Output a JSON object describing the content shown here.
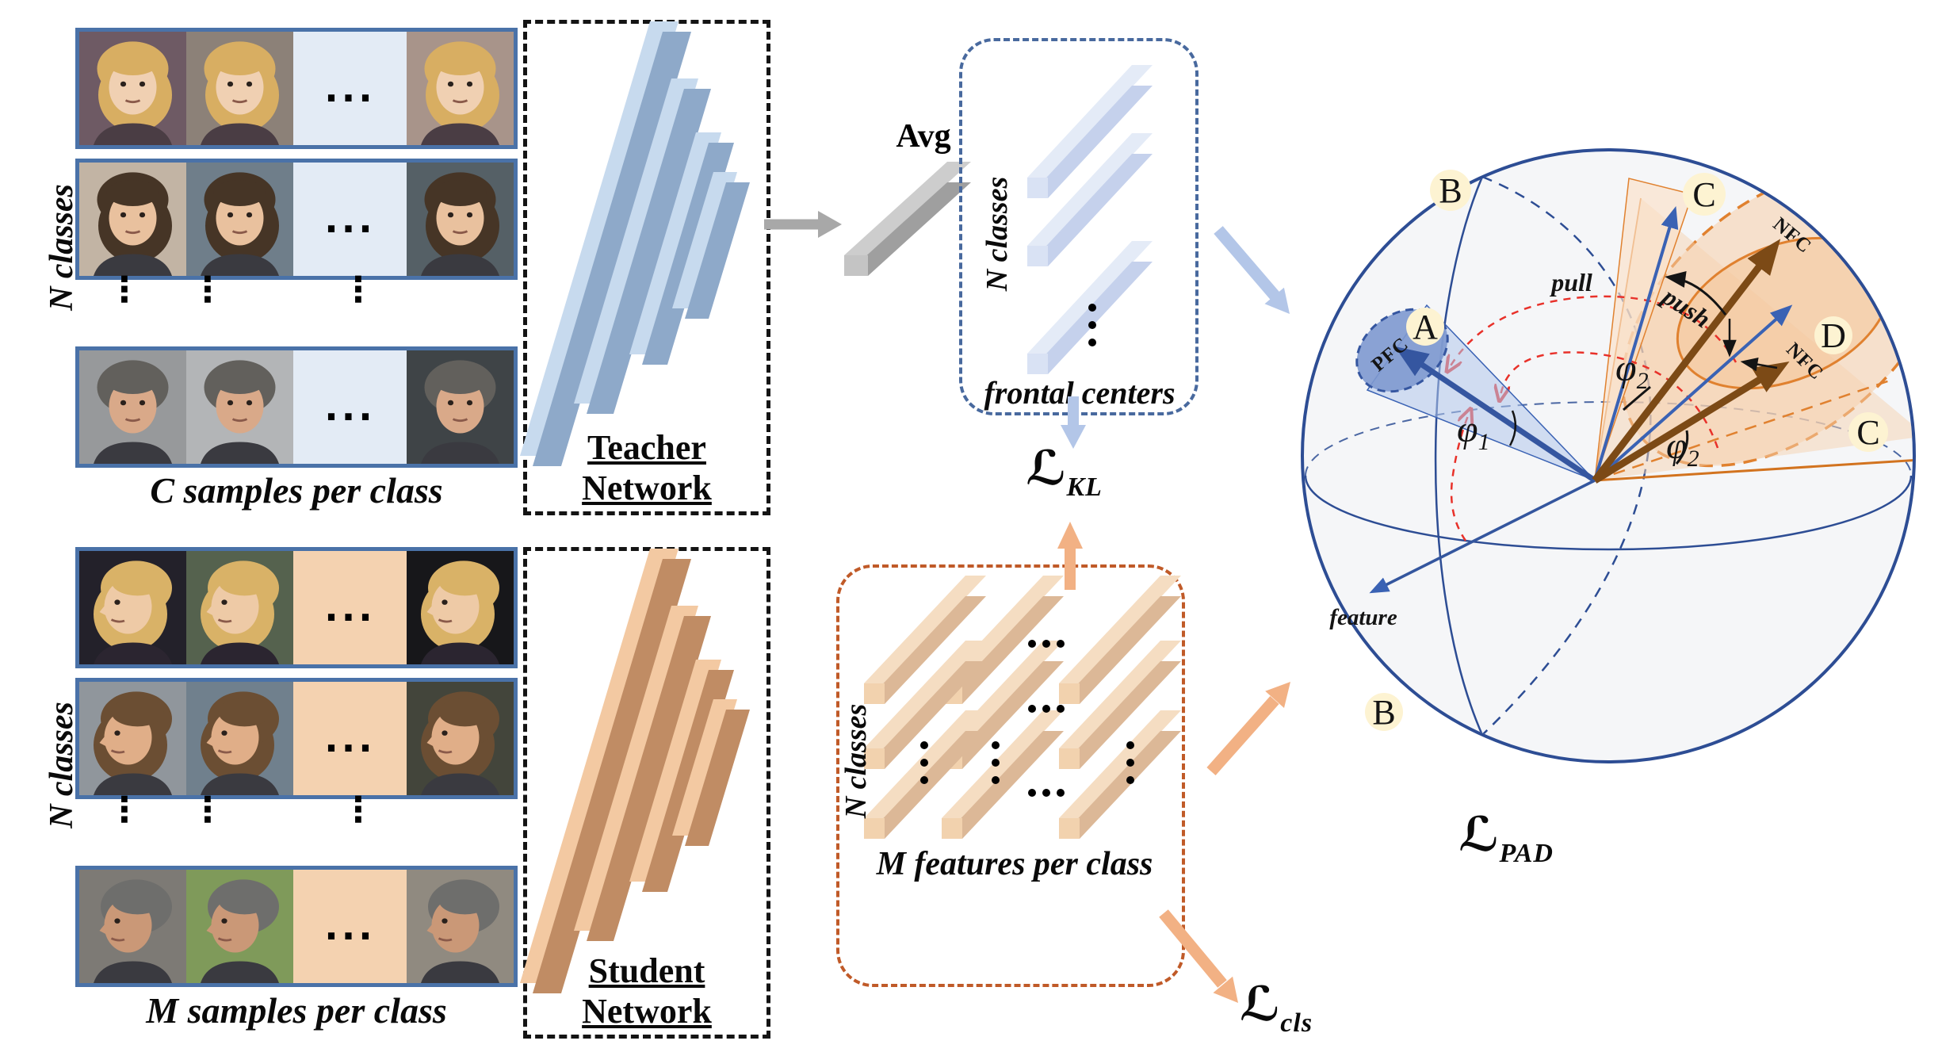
{
  "panels": {
    "teacher": {
      "side_label": "N classes",
      "caption": "C samples per class",
      "network_label": "Teacher Network",
      "rows": [
        {
          "images": [
            {
              "bg": "#6e5a64",
              "skin": "#f0d0b2",
              "hair": "#d8ae62",
              "coat": "#4a3d44",
              "view": "frontal",
              "long": true
            },
            {
              "bg": "#8c8178",
              "skin": "#f0d0b2",
              "hair": "#d8ae62",
              "coat": "#4a3d44",
              "view": "frontal",
              "long": true
            },
            {
              "bg": "#a8948a",
              "skin": "#f0d0b2",
              "hair": "#d8ae62",
              "coat": "#4a3d44",
              "view": "frontal",
              "long": true
            }
          ]
        },
        {
          "images": [
            {
              "bg": "#c2b4a4",
              "skin": "#e9c19e",
              "hair": "#463526",
              "coat": "#3a3a40",
              "view": "frontal",
              "long": true
            },
            {
              "bg": "#6f7e8a",
              "skin": "#e9c19e",
              "hair": "#463526",
              "coat": "#3a3a40",
              "view": "frontal",
              "long": true
            },
            {
              "bg": "#556066",
              "skin": "#e9c19e",
              "hair": "#463526",
              "coat": "#3a3a40",
              "view": "frontal",
              "long": true
            }
          ]
        },
        {
          "images": [
            {
              "bg": "#97999b",
              "skin": "#d9a989",
              "hair": "#62605c",
              "coat": "#3a3a40",
              "view": "frontal",
              "long": false
            },
            {
              "bg": "#b3b5b7",
              "skin": "#d9a989",
              "hair": "#62605c",
              "coat": "#3a3a40",
              "view": "frontal",
              "long": false
            },
            {
              "bg": "#3f4447",
              "skin": "#d9a989",
              "hair": "#62605c",
              "coat": "#3a3a40",
              "view": "frontal",
              "long": false
            }
          ]
        }
      ]
    },
    "student": {
      "side_label": "N classes",
      "caption": "M samples per class",
      "network_label": "Student Network",
      "rows": [
        {
          "images": [
            {
              "bg": "#23212a",
              "skin": "#eecaa6",
              "hair": "#d9b267",
              "coat": "#2b2530",
              "view": "profile",
              "long": true
            },
            {
              "bg": "#55624e",
              "skin": "#eecaa6",
              "hair": "#d9b267",
              "coat": "#2b2530",
              "view": "profile",
              "long": true
            },
            {
              "bg": "#17171a",
              "skin": "#eecaa6",
              "hair": "#d9b267",
              "coat": "#2b2530",
              "view": "profile",
              "long": true
            }
          ]
        },
        {
          "images": [
            {
              "bg": "#90969c",
              "skin": "#e0ae88",
              "hair": "#6b4e33",
              "coat": "#3a3a40",
              "view": "profile",
              "long": true
            },
            {
              "bg": "#70808d",
              "skin": "#e0ae88",
              "hair": "#6b4e33",
              "coat": "#3a3a40",
              "view": "profile",
              "long": true
            },
            {
              "bg": "#43453b",
              "skin": "#e0ae88",
              "hair": "#6b4e33",
              "coat": "#3a3a40",
              "view": "profile",
              "long": true
            }
          ]
        },
        {
          "images": [
            {
              "bg": "#7d7a75",
              "skin": "#ca9877",
              "hair": "#6e6e6c",
              "coat": "#3a3a40",
              "view": "profile",
              "long": false
            },
            {
              "bg": "#7f9a5a",
              "skin": "#ca9877",
              "hair": "#6e6e6c",
              "coat": "#3a3a40",
              "view": "profile",
              "long": false
            },
            {
              "bg": "#908a80",
              "skin": "#ca9877",
              "hair": "#6e6e6c",
              "coat": "#3a3a40",
              "view": "profile",
              "long": false
            }
          ]
        }
      ]
    }
  },
  "avg_label": "Avg",
  "frontal_centers": {
    "side_label": "N classes",
    "title": "frontal centers"
  },
  "features": {
    "side_label": "N classes",
    "title": "M features per class"
  },
  "losses": {
    "kl": {
      "script": "ℒ",
      "sub": "KL"
    },
    "cls": {
      "script": "ℒ",
      "sub": "cls"
    },
    "pad": {
      "script": "ℒ",
      "sub": "PAD"
    }
  },
  "sphere": {
    "badges": {
      "a": "A",
      "b": "B",
      "c": "C",
      "d": "D"
    },
    "pfc": "PFC",
    "nfc": "NFC",
    "pull": "pull",
    "push": "push",
    "feature": "feature",
    "phi": "φ",
    "phi1_sub": "1",
    "phi2_sub": "2"
  },
  "ellipsis": {
    "h": "...",
    "v": "⋮"
  },
  "colors": {
    "row_border": "#4a72a8",
    "teacher_row_bg": "#e3ebf5",
    "student_row_bg": "#f4d2b0",
    "teacher_slab": "#8ea9c9",
    "teacher_slab_light": "#c7daee",
    "student_slab": "#c08c64",
    "student_slab_light": "#f3c9a2",
    "frontal_rod": "#c5d1ec",
    "frontal_rod_light": "#e4ebf7",
    "feature_rod": "#dcb897",
    "feature_rod_light": "#f5ddc2",
    "gray_bar": "#9f9f9f",
    "arrow_gray": "#a8a8a8",
    "arrow_blue": "#b3c6e8",
    "arrow_orange": "#f2b184",
    "sphere_outline": "#2d4d94",
    "sphere_fill": "#f5f6f8",
    "vector_blue": "#3a62b4",
    "vector_brown": "#7c4a16",
    "orange_line": "#e0812f",
    "red_dash": "#e8312a",
    "badge_bg": "#fdf3d2"
  }
}
